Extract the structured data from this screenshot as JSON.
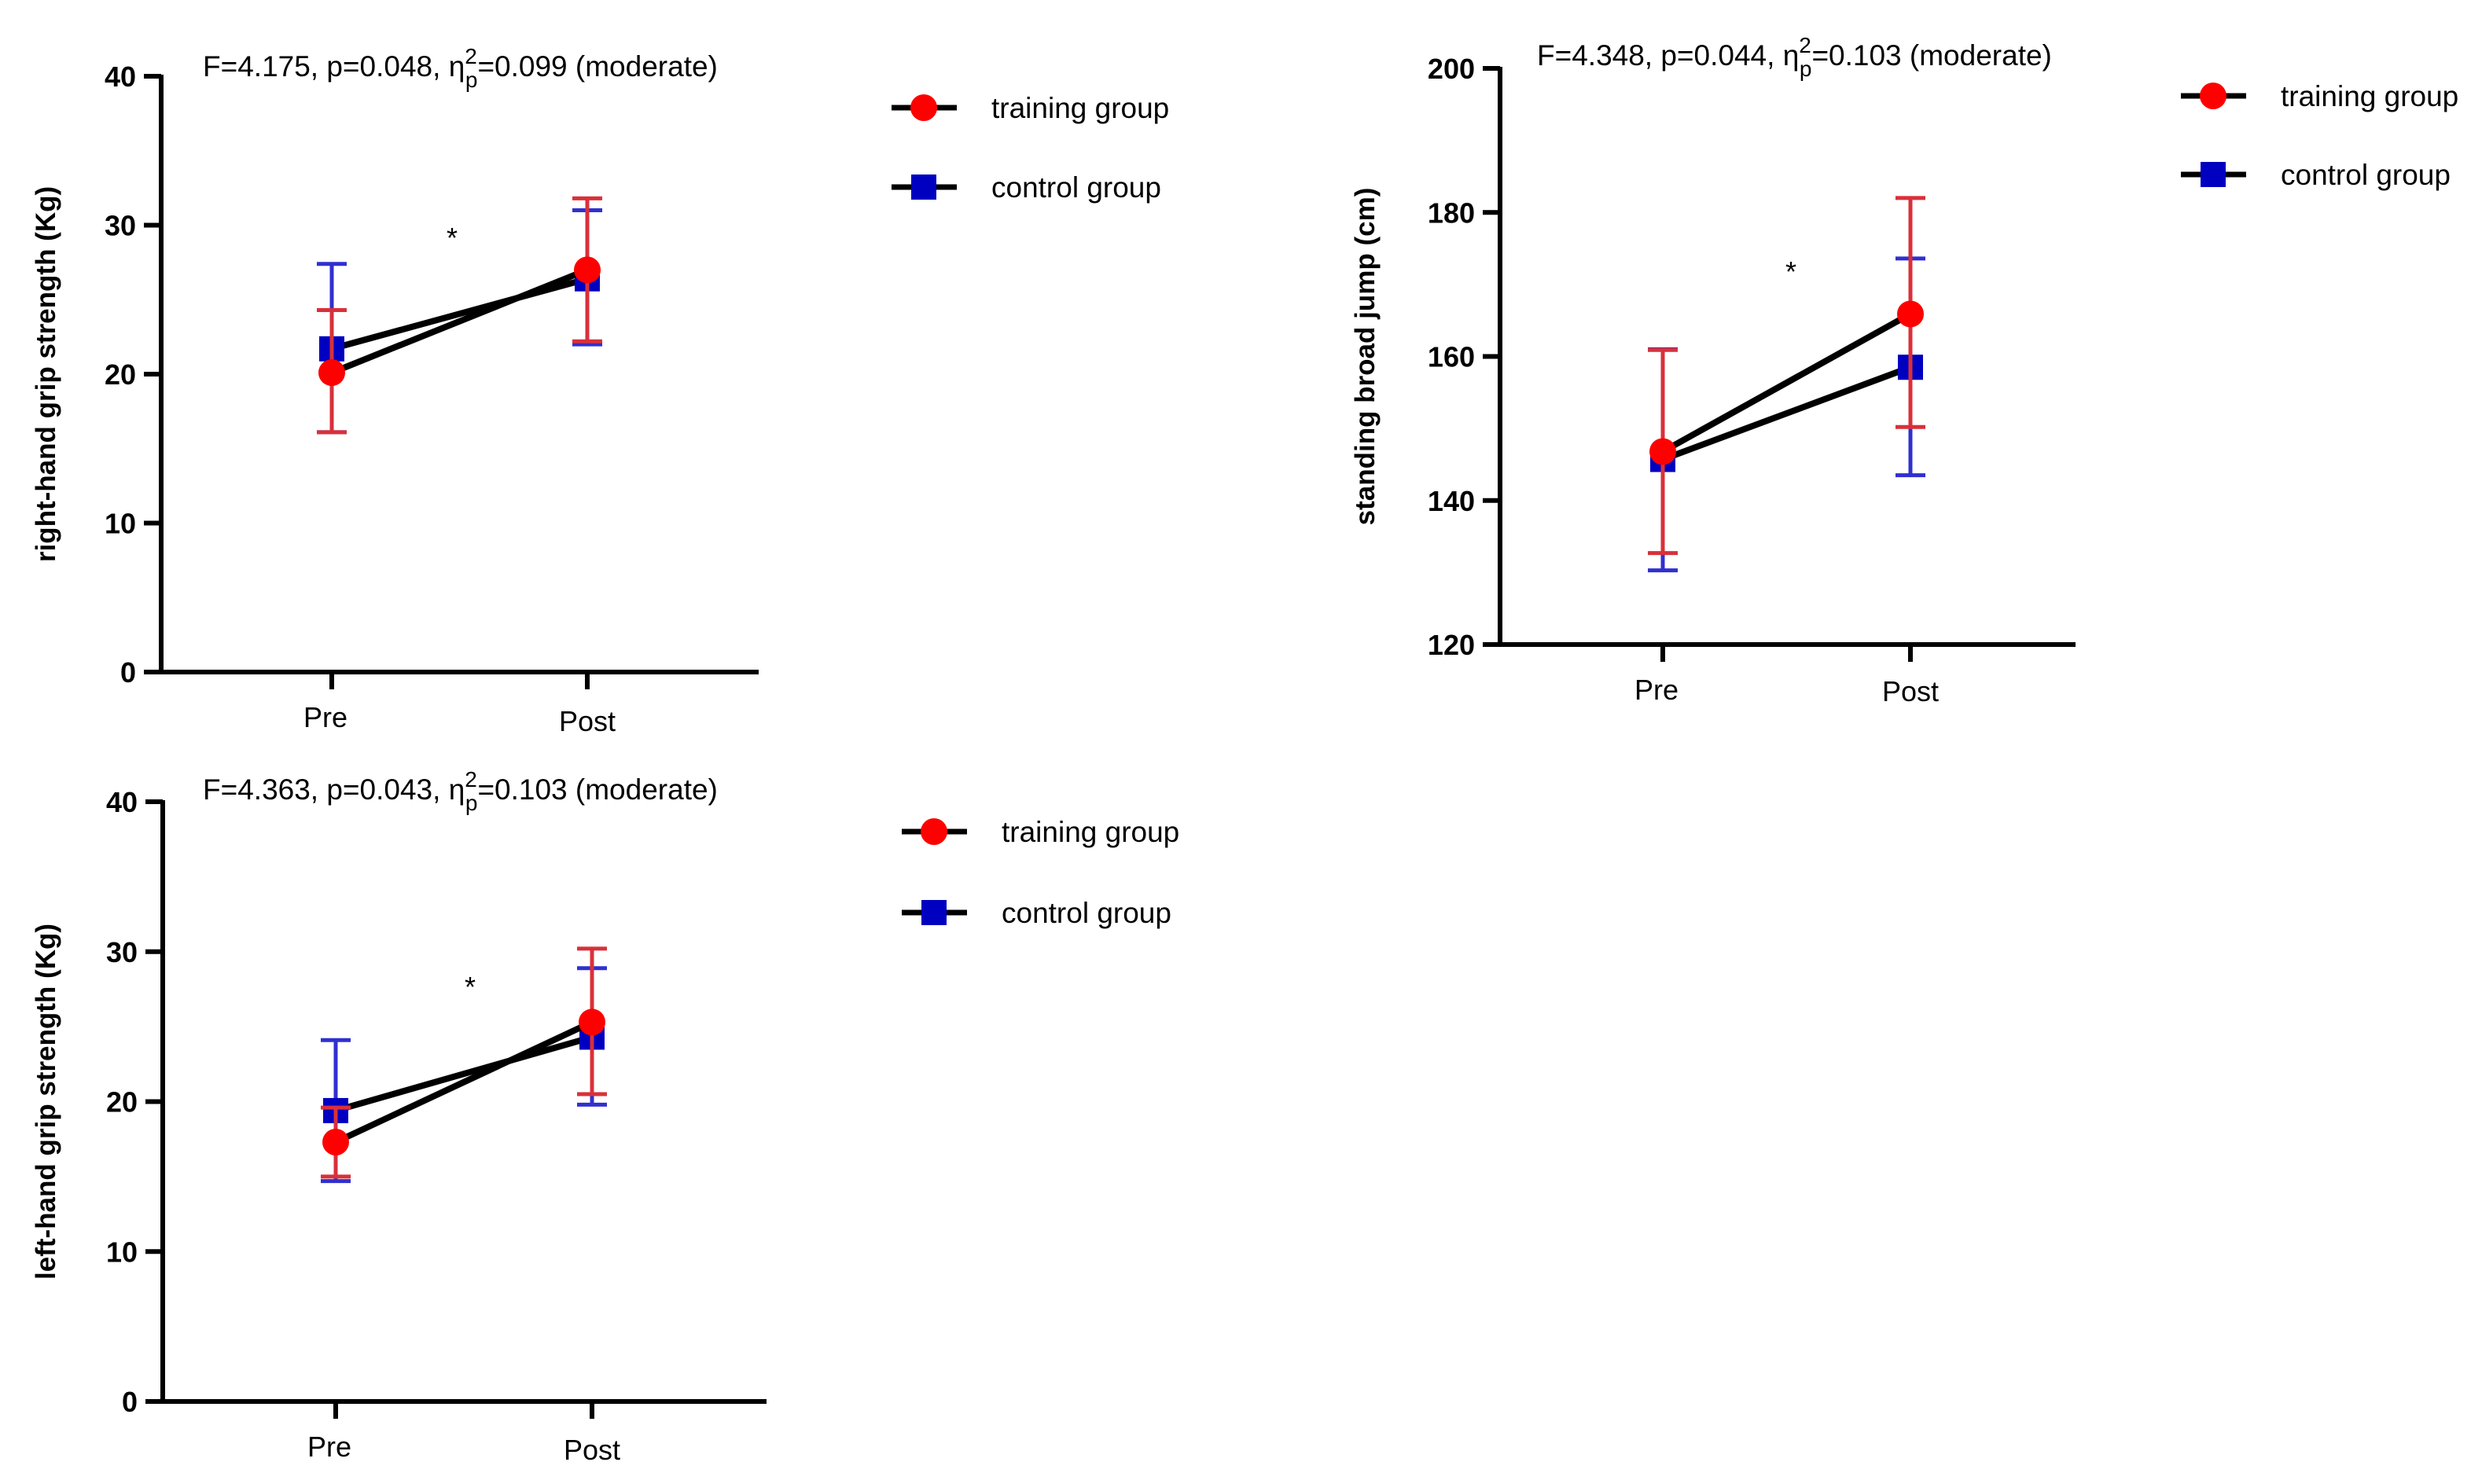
{
  "colors": {
    "training": "#ff0000",
    "training_err": "#d9303a",
    "control": "#0000c0",
    "control_err": "#3030d0",
    "line": "#000000"
  },
  "chart_data": [
    {
      "type": "line",
      "title_pre": "F=4.175, p=0.048, η",
      "title_sup": "2",
      "title_sub": "p",
      "title_post": "=0.099 (moderate)",
      "ylabel": "right-hand grip strength (Kg)",
      "categories": [
        "Pre",
        "Post"
      ],
      "ylim": [
        0,
        40
      ],
      "yticks": [
        "0",
        "10",
        "20",
        "30",
        "40"
      ],
      "annotation": "*",
      "legend": [
        "training group",
        "control group"
      ],
      "legend_position": "right",
      "series": [
        {
          "name": "training group",
          "values": [
            20.1,
            27.0
          ],
          "err_low": [
            16.1,
            22.2
          ],
          "err_high": [
            24.3,
            31.8
          ]
        },
        {
          "name": "control group",
          "values": [
            21.7,
            26.4
          ],
          "err_low": [
            16.1,
            22.0
          ],
          "err_high": [
            27.4,
            31.0
          ]
        }
      ]
    },
    {
      "type": "line",
      "title_pre": "F=4.348, p=0.044, η",
      "title_sup": "2",
      "title_sub": "p",
      "title_post": "=0.103 (moderate)",
      "ylabel": "standing broad jump (cm)",
      "categories": [
        "Pre",
        "Post"
      ],
      "ylim": [
        120,
        200
      ],
      "yticks": [
        "120",
        "140",
        "160",
        "180",
        "200"
      ],
      "annotation": "*",
      "legend": [
        "training group",
        "control group"
      ],
      "legend_position": "right",
      "series": [
        {
          "name": "training group",
          "values": [
            146.8,
            165.9
          ],
          "err_low": [
            132.7,
            150.2
          ],
          "err_high": [
            160.9,
            182.0
          ]
        },
        {
          "name": "control group",
          "values": [
            145.7,
            158.5
          ],
          "err_low": [
            130.3,
            143.5
          ],
          "err_high": [
            161.0,
            173.6
          ]
        }
      ]
    },
    {
      "type": "line",
      "title_pre": "F=4.363, p=0.043, η",
      "title_sup": "2",
      "title_sub": "p",
      "title_post": "=0.103 (moderate)",
      "ylabel": "left-hand grip strength (Kg)",
      "categories": [
        "Pre",
        "Post"
      ],
      "ylim": [
        0,
        40
      ],
      "yticks": [
        "0",
        "10",
        "20",
        "30",
        "40"
      ],
      "annotation": "*",
      "legend": [
        "training group",
        "control group"
      ],
      "legend_position": "right",
      "series": [
        {
          "name": "training group",
          "values": [
            17.3,
            25.3
          ],
          "err_low": [
            15.0,
            20.5
          ],
          "err_high": [
            19.6,
            30.2
          ]
        },
        {
          "name": "control group",
          "values": [
            19.4,
            24.3
          ],
          "err_low": [
            14.7,
            19.8
          ],
          "err_high": [
            24.1,
            28.9
          ]
        }
      ]
    }
  ]
}
